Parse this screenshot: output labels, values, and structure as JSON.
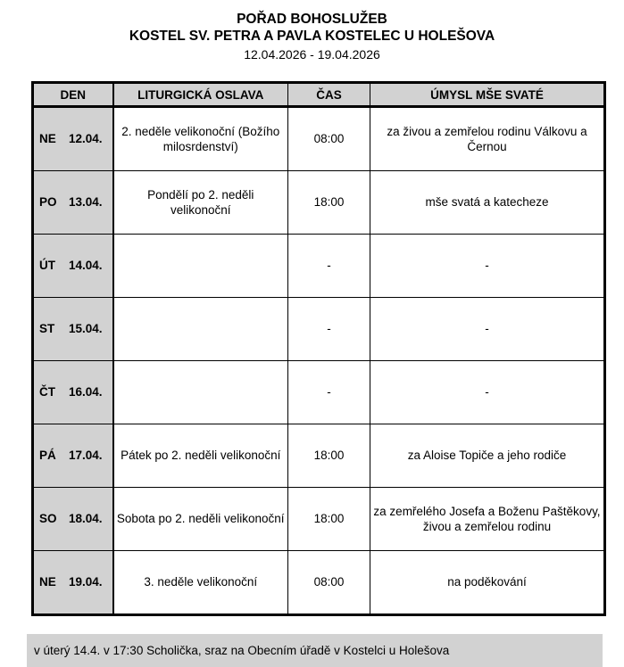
{
  "header": {
    "title": "POŘAD BOHOSLUŽEB",
    "subtitle": "KOSTEL SV. PETRA A PAVLA KOSTELEC U HOLEŠOVA",
    "date_range": "12.04.2026 - 19.04.2026"
  },
  "table": {
    "columns": [
      "DEN",
      "LITURGICKÁ OSLAVA",
      "ČAS",
      "ÚMYSL MŠE SVATÉ"
    ],
    "rows": [
      {
        "day": "NE",
        "date": "12.04.",
        "celebration": "2. neděle velikonoční (Božího milosrdenství)",
        "time": "08:00",
        "intention": "za živou a zemřelou rodinu Válkovu a Černou"
      },
      {
        "day": "PO",
        "date": "13.04.",
        "celebration": "Pondělí po 2. neděli velikonoční",
        "time": "18:00",
        "intention": "mše svatá a katecheze"
      },
      {
        "day": "ÚT",
        "date": "14.04.",
        "celebration": "",
        "time": "-",
        "intention": "-"
      },
      {
        "day": "ST",
        "date": "15.04.",
        "celebration": "",
        "time": "-",
        "intention": "-"
      },
      {
        "day": "ČT",
        "date": "16.04.",
        "celebration": "",
        "time": "-",
        "intention": "-"
      },
      {
        "day": "PÁ",
        "date": "17.04.",
        "celebration": "Pátek po 2. neděli velikonoční",
        "time": "18:00",
        "intention": "za Aloise Topiče a jeho rodiče"
      },
      {
        "day": "SO",
        "date": "18.04.",
        "celebration": "Sobota po 2. neděli velikonoční",
        "time": "18:00",
        "intention": "za zemřelého Josefa a Boženu Paštěkovy, živou a zemřelou rodinu"
      },
      {
        "day": "NE",
        "date": "19.04.",
        "celebration": "3. neděle velikonoční",
        "time": "08:00",
        "intention": "na poděkování"
      }
    ]
  },
  "footer": {
    "note": "v úterý 14.4. v 17:30 Scholička, sraz na Obecním úřadě v Kostelci u Holešova"
  },
  "colors": {
    "cell_gray": "#d2d2d2",
    "border_black": "#000000"
  }
}
